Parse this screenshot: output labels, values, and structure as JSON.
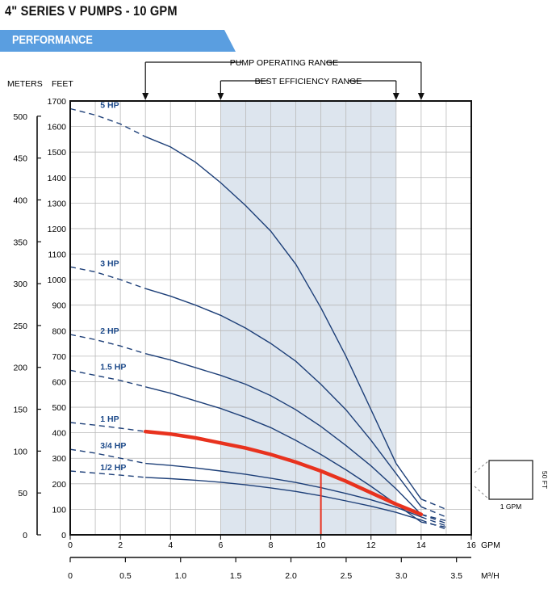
{
  "header": {
    "title": "4\" SERIES V PUMPS - 10 GPM",
    "banner": "PERFORMANCE"
  },
  "ranges": {
    "pump_operating_label": "PUMP OPERATING RANGE",
    "pump_operating_gpm": [
      3,
      14
    ],
    "best_efficiency_label": "BEST EFFICIENCY RANGE",
    "best_efficiency_gpm": [
      6,
      13
    ]
  },
  "scale_inset": {
    "height_label": "50 FT",
    "width_label": "1 GPM"
  },
  "colors": {
    "curve": "#1d3f78",
    "label": "#1d4a8a",
    "highlight": "#e8321e",
    "band": "#dde5ee",
    "banner": "#5a9ee0"
  },
  "chart_data": {
    "type": "line",
    "xlabel": "GPM",
    "x2label": "M³/H",
    "y_left_label": "METERS",
    "y_right_label": "FEET",
    "xlim": [
      0,
      16
    ],
    "x_ticks": [
      0,
      2,
      4,
      6,
      8,
      10,
      12,
      14,
      16
    ],
    "x2_ticks": [
      0,
      0.5,
      1.0,
      1.5,
      2.0,
      2.5,
      3.0,
      3.5
    ],
    "x2_tick_labels": [
      "0",
      "0.5",
      "1.0",
      "1.5",
      "2.0",
      "2.5",
      "3.0",
      "3.5"
    ],
    "ylim_feet": [
      0,
      1700
    ],
    "feet_ticks": [
      0,
      100,
      200,
      300,
      400,
      500,
      600,
      700,
      800,
      900,
      1000,
      1100,
      1200,
      1300,
      1400,
      1500,
      1600,
      1700
    ],
    "meter_ticks": [
      0,
      50,
      100,
      150,
      200,
      250,
      300,
      350,
      400,
      450,
      500
    ],
    "highlight": {
      "series": "1 HP",
      "gpm": 10
    },
    "series": [
      {
        "name": "5 HP",
        "solid": [
          [
            3,
            1560
          ],
          [
            4,
            1520
          ],
          [
            5,
            1460
          ],
          [
            6,
            1380
          ],
          [
            7,
            1290
          ],
          [
            8,
            1190
          ],
          [
            9,
            1060
          ],
          [
            10,
            890
          ],
          [
            11,
            700
          ],
          [
            12,
            490
          ],
          [
            13,
            280
          ],
          [
            14,
            140
          ]
        ],
        "dashed_start": [
          [
            0,
            1670
          ],
          [
            1,
            1645
          ],
          [
            2,
            1610
          ],
          [
            3,
            1560
          ]
        ],
        "dashed_end": [
          [
            14,
            140
          ],
          [
            15,
            100
          ]
        ]
      },
      {
        "name": "3 HP",
        "solid": [
          [
            3,
            965
          ],
          [
            4,
            935
          ],
          [
            5,
            900
          ],
          [
            6,
            860
          ],
          [
            7,
            810
          ],
          [
            8,
            750
          ],
          [
            9,
            680
          ],
          [
            10,
            590
          ],
          [
            11,
            490
          ],
          [
            12,
            370
          ],
          [
            13,
            240
          ],
          [
            14,
            110
          ]
        ],
        "dashed_start": [
          [
            0,
            1050
          ],
          [
            1,
            1030
          ],
          [
            2,
            1000
          ],
          [
            3,
            965
          ]
        ],
        "dashed_end": [
          [
            14,
            110
          ],
          [
            15,
            70
          ]
        ]
      },
      {
        "name": "2 HP",
        "solid": [
          [
            3,
            710
          ],
          [
            4,
            685
          ],
          [
            5,
            655
          ],
          [
            6,
            625
          ],
          [
            7,
            590
          ],
          [
            8,
            545
          ],
          [
            9,
            490
          ],
          [
            10,
            425
          ],
          [
            11,
            350
          ],
          [
            12,
            270
          ],
          [
            13,
            180
          ],
          [
            14,
            80
          ]
        ],
        "dashed_start": [
          [
            0,
            785
          ],
          [
            1,
            765
          ],
          [
            2,
            740
          ],
          [
            3,
            710
          ]
        ],
        "dashed_end": [
          [
            14,
            80
          ],
          [
            15,
            45
          ]
        ]
      },
      {
        "name": "1.5 HP",
        "solid": [
          [
            3,
            580
          ],
          [
            4,
            555
          ],
          [
            5,
            525
          ],
          [
            6,
            495
          ],
          [
            7,
            460
          ],
          [
            8,
            420
          ],
          [
            9,
            370
          ],
          [
            10,
            315
          ],
          [
            11,
            255
          ],
          [
            12,
            190
          ],
          [
            13,
            120
          ],
          [
            14,
            50
          ]
        ],
        "dashed_start": [
          [
            0,
            645
          ],
          [
            1,
            625
          ],
          [
            2,
            605
          ],
          [
            3,
            580
          ]
        ],
        "dashed_end": [
          [
            14,
            50
          ],
          [
            15,
            30
          ]
        ]
      },
      {
        "name": "1 HP",
        "solid": [
          [
            3,
            405
          ],
          [
            4,
            395
          ],
          [
            5,
            380
          ],
          [
            6,
            360
          ],
          [
            7,
            340
          ],
          [
            8,
            315
          ],
          [
            9,
            285
          ],
          [
            10,
            250
          ],
          [
            11,
            210
          ],
          [
            12,
            165
          ],
          [
            13,
            120
          ],
          [
            14,
            80
          ]
        ],
        "dashed_start": [
          [
            0,
            440
          ],
          [
            1,
            430
          ],
          [
            2,
            418
          ],
          [
            3,
            405
          ]
        ],
        "dashed_end": [
          [
            14,
            80
          ],
          [
            15,
            55
          ]
        ]
      },
      {
        "name": "3/4 HP",
        "solid": [
          [
            3,
            280
          ],
          [
            4,
            272
          ],
          [
            5,
            262
          ],
          [
            6,
            250
          ],
          [
            7,
            237
          ],
          [
            8,
            222
          ],
          [
            9,
            205
          ],
          [
            10,
            185
          ],
          [
            11,
            162
          ],
          [
            12,
            137
          ],
          [
            13,
            108
          ],
          [
            14,
            70
          ]
        ],
        "dashed_start": [
          [
            0,
            335
          ],
          [
            1,
            320
          ],
          [
            2,
            300
          ],
          [
            3,
            280
          ]
        ],
        "dashed_end": [
          [
            14,
            70
          ],
          [
            15,
            35
          ]
        ]
      },
      {
        "name": "1/2 HP",
        "solid": [
          [
            3,
            225
          ],
          [
            4,
            220
          ],
          [
            5,
            214
          ],
          [
            6,
            206
          ],
          [
            7,
            196
          ],
          [
            8,
            184
          ],
          [
            9,
            170
          ],
          [
            10,
            153
          ],
          [
            11,
            133
          ],
          [
            12,
            112
          ],
          [
            13,
            88
          ],
          [
            14,
            58
          ]
        ],
        "dashed_start": [
          [
            0,
            250
          ],
          [
            1,
            242
          ],
          [
            2,
            234
          ],
          [
            3,
            225
          ]
        ],
        "dashed_end": [
          [
            14,
            58
          ],
          [
            15,
            22
          ]
        ]
      }
    ]
  }
}
